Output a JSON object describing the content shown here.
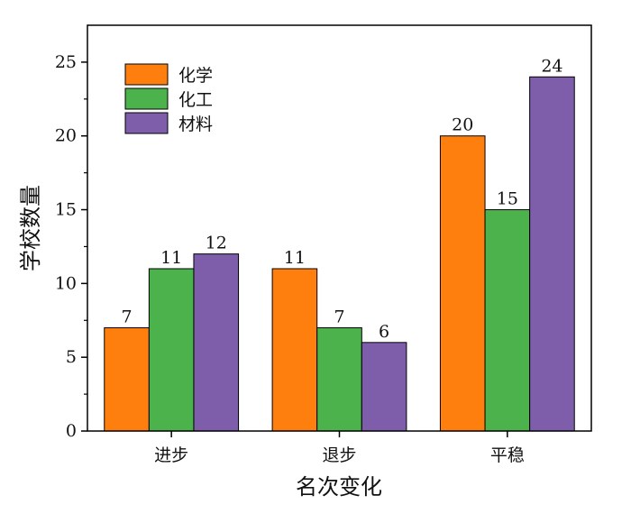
{
  "chart_data": {
    "type": "bar",
    "title": "",
    "xlabel": "名次变化",
    "ylabel": "学校数量",
    "categories": [
      "进步",
      "退步",
      "平稳"
    ],
    "series": [
      {
        "name": "化学",
        "values": [
          7,
          11,
          20
        ],
        "color": "#FF7F0E"
      },
      {
        "name": "化工",
        "values": [
          11,
          7,
          15
        ],
        "color": "#4CB24C"
      },
      {
        "name": "材料",
        "values": [
          12,
          6,
          24
        ],
        "color": "#7E5DAA"
      }
    ],
    "ylim": [
      0,
      27.5
    ],
    "yticks": [
      0,
      5,
      10,
      15,
      20,
      25
    ],
    "show_data_labels": true,
    "legend_position": "top-left",
    "grid": false
  }
}
